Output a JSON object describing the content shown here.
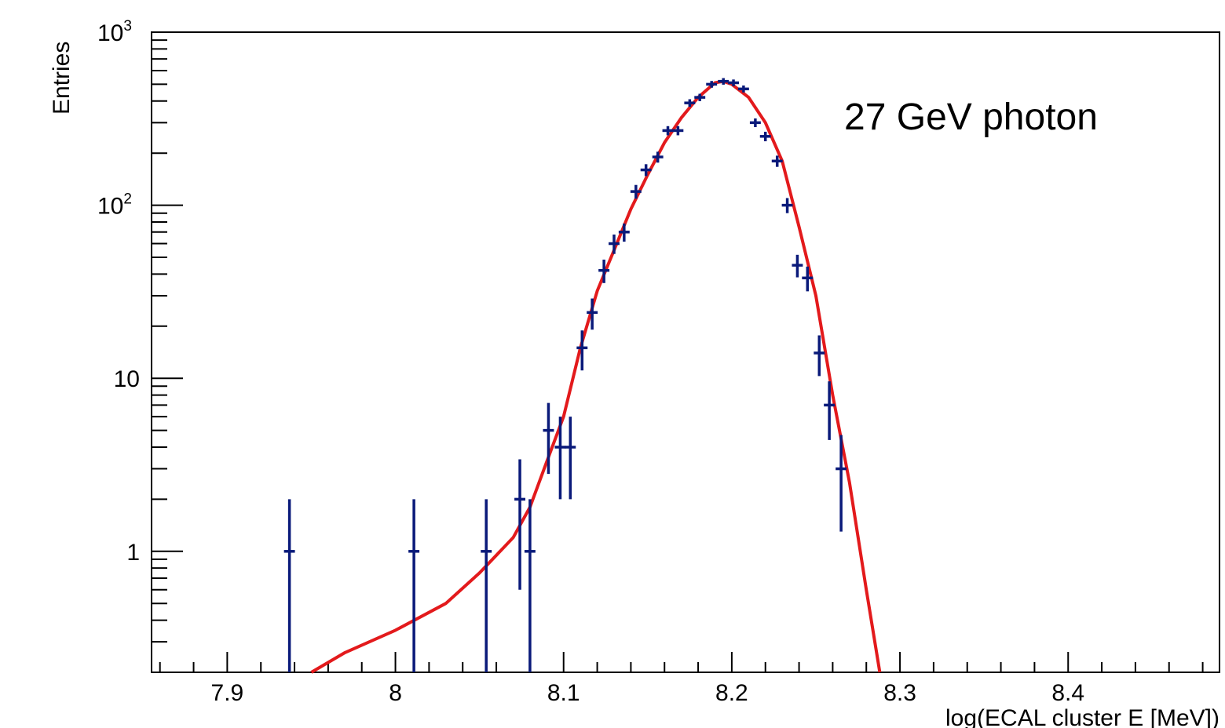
{
  "chart_data": {
    "type": "scatter",
    "title": "",
    "xlabel": "log(ECAL cluster E [MeV])",
    "ylabel": "Entries",
    "annotation": "27 GeV photon",
    "xlim": [
      7.855,
      8.49
    ],
    "ylim": [
      0.2,
      1000
    ],
    "yscale": "log",
    "grid": false,
    "legend": "none",
    "x_tick_labels": [
      "7.9",
      "8",
      "8.1",
      "8.2",
      "8.3",
      "8.4"
    ],
    "x_ticks": [
      7.9,
      8.0,
      8.1,
      8.2,
      8.3,
      8.4
    ],
    "y_tick_labels": [
      {
        "value": 1000,
        "base": "10",
        "exp": "3"
      },
      {
        "value": 100,
        "base": "10",
        "exp": "2"
      },
      {
        "value": 10,
        "base": "10",
        "exp": ""
      },
      {
        "value": 1,
        "base": "1",
        "exp": ""
      }
    ],
    "series": [
      {
        "kind": "data",
        "color": "#0a1a7a",
        "x": [
          7.937,
          8.011,
          8.054,
          8.074,
          8.08,
          8.091,
          8.098,
          8.104,
          8.111,
          8.117,
          8.124,
          8.13,
          8.136,
          8.143,
          8.149,
          8.156,
          8.162,
          8.168,
          8.175,
          8.181,
          8.188,
          8.195,
          8.201,
          8.207,
          8.214,
          8.22,
          8.227,
          8.233,
          8.239,
          8.245,
          8.252,
          8.258,
          8.265
        ],
        "y": [
          1,
          1,
          1,
          2,
          1,
          5,
          4,
          4,
          15,
          24,
          42,
          60,
          70,
          120,
          160,
          190,
          270,
          270,
          390,
          420,
          500,
          520,
          510,
          470,
          300,
          250,
          180,
          100,
          45,
          38,
          14,
          7,
          3
        ],
        "err_lo": [
          1,
          1,
          1,
          1.4,
          1,
          2.2,
          2,
          2,
          3.9,
          4.9,
          6.5,
          7.7,
          8.4,
          11,
          12.6,
          13.8,
          16.4,
          16.4,
          19.7,
          20.5,
          22.4,
          22.8,
          22.6,
          21.7,
          17.3,
          15.8,
          13.4,
          10,
          6.7,
          6.2,
          3.7,
          2.6,
          1.7
        ],
        "err_hi": [
          1,
          1,
          1,
          1.4,
          1,
          2.2,
          2,
          2,
          3.9,
          4.9,
          6.5,
          7.7,
          8.4,
          11,
          12.6,
          13.8,
          16.4,
          16.4,
          19.7,
          20.5,
          22.4,
          22.8,
          22.6,
          21.7,
          17.3,
          15.8,
          13.4,
          10,
          6.7,
          6.2,
          3.7,
          2.6,
          1.7
        ]
      },
      {
        "kind": "fit",
        "color": "#e31a1c",
        "x": [
          7.95,
          7.97,
          8.0,
          8.03,
          8.05,
          8.07,
          8.08,
          8.09,
          8.1,
          8.11,
          8.12,
          8.13,
          8.14,
          8.15,
          8.16,
          8.17,
          8.18,
          8.19,
          8.195,
          8.2,
          8.21,
          8.22,
          8.23,
          8.24,
          8.25,
          8.26,
          8.27,
          8.28,
          8.288
        ],
        "y": [
          0.2,
          0.26,
          0.35,
          0.5,
          0.75,
          1.2,
          1.8,
          3.3,
          6,
          15,
          32,
          55,
          95,
          150,
          230,
          320,
          420,
          510,
          520,
          500,
          420,
          300,
          180,
          75,
          30,
          8,
          2.5,
          0.6,
          0.2
        ]
      }
    ]
  }
}
